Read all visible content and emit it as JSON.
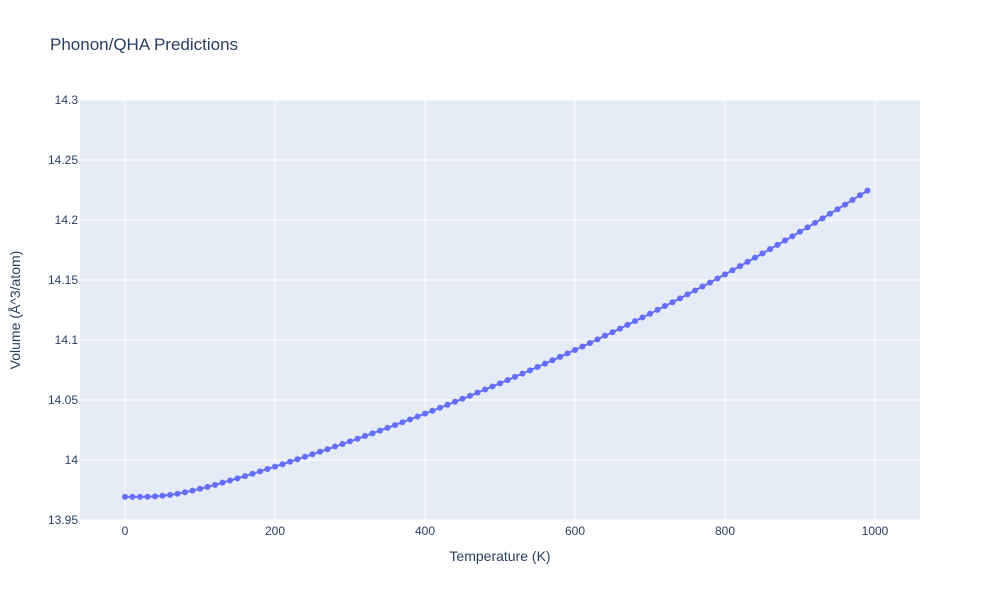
{
  "chart_data": {
    "type": "line",
    "title": "Phonon/QHA Predictions",
    "xlabel": "Temperature (K)",
    "ylabel": "Volume (Å^3/atom)",
    "xlim": [
      -60,
      1060
    ],
    "ylim": [
      13.95,
      14.3
    ],
    "xticks": [
      0,
      200,
      400,
      600,
      800,
      1000
    ],
    "xtick_labels": [
      "0",
      "200",
      "400",
      "600",
      "800",
      "1000"
    ],
    "yticks": [
      13.95,
      14,
      14.05,
      14.1,
      14.15,
      14.2,
      14.25,
      14.3
    ],
    "ytick_labels": [
      "13.95",
      "14",
      "14.05",
      "14.1",
      "14.15",
      "14.2",
      "14.25",
      "14.3"
    ],
    "grid": true,
    "mode": "lines+markers",
    "series": [
      {
        "color": "#636efa",
        "x": [
          0,
          10,
          20,
          30,
          40,
          50,
          60,
          70,
          80,
          90,
          100,
          110,
          120,
          130,
          140,
          150,
          160,
          170,
          180,
          190,
          200,
          210,
          220,
          230,
          240,
          250,
          260,
          270,
          280,
          290,
          300,
          310,
          320,
          330,
          340,
          350,
          360,
          370,
          380,
          390,
          400,
          410,
          420,
          430,
          440,
          450,
          460,
          470,
          480,
          490,
          500,
          510,
          520,
          530,
          540,
          550,
          560,
          570,
          580,
          590,
          600,
          610,
          620,
          630,
          640,
          650,
          660,
          670,
          680,
          690,
          700,
          710,
          720,
          730,
          740,
          750,
          760,
          770,
          780,
          790,
          800,
          810,
          820,
          830,
          840,
          850,
          860,
          870,
          880,
          890,
          900,
          910,
          920,
          930,
          940,
          950,
          960,
          970,
          980,
          990
        ],
        "y": [
          13.9693,
          13.9693,
          13.9693,
          13.9694,
          13.9697,
          13.9702,
          13.9709,
          13.9719,
          13.9731,
          13.9745,
          13.976,
          13.9776,
          13.9793,
          13.9811,
          13.9829,
          13.9847,
          13.9866,
          13.9885,
          13.9905,
          13.9925,
          13.9945,
          13.9965,
          13.9985,
          14.0006,
          14.0027,
          14.0048,
          14.0069,
          14.009,
          14.0112,
          14.0133,
          14.0155,
          14.0177,
          14.02,
          14.0222,
          14.0245,
          14.0268,
          14.0291,
          14.0315,
          14.0338,
          14.0362,
          14.0386,
          14.041,
          14.0435,
          14.046,
          14.0485,
          14.051,
          14.0535,
          14.0561,
          14.0587,
          14.0613,
          14.0639,
          14.0666,
          14.0693,
          14.072,
          14.0747,
          14.0775,
          14.0803,
          14.0831,
          14.0859,
          14.0888,
          14.0917,
          14.0946,
          14.0975,
          14.1005,
          14.1035,
          14.1065,
          14.1095,
          14.1126,
          14.1157,
          14.1188,
          14.1219,
          14.1251,
          14.1283,
          14.1315,
          14.1347,
          14.138,
          14.1413,
          14.1446,
          14.1479,
          14.1513,
          14.1547,
          14.1581,
          14.1616,
          14.1651,
          14.1686,
          14.1721,
          14.1757,
          14.1793,
          14.1829,
          14.1865,
          14.1902,
          14.1939,
          14.1976,
          14.2014,
          14.2052,
          14.209,
          14.2128,
          14.2167,
          14.2206,
          14.2245
        ]
      }
    ]
  }
}
